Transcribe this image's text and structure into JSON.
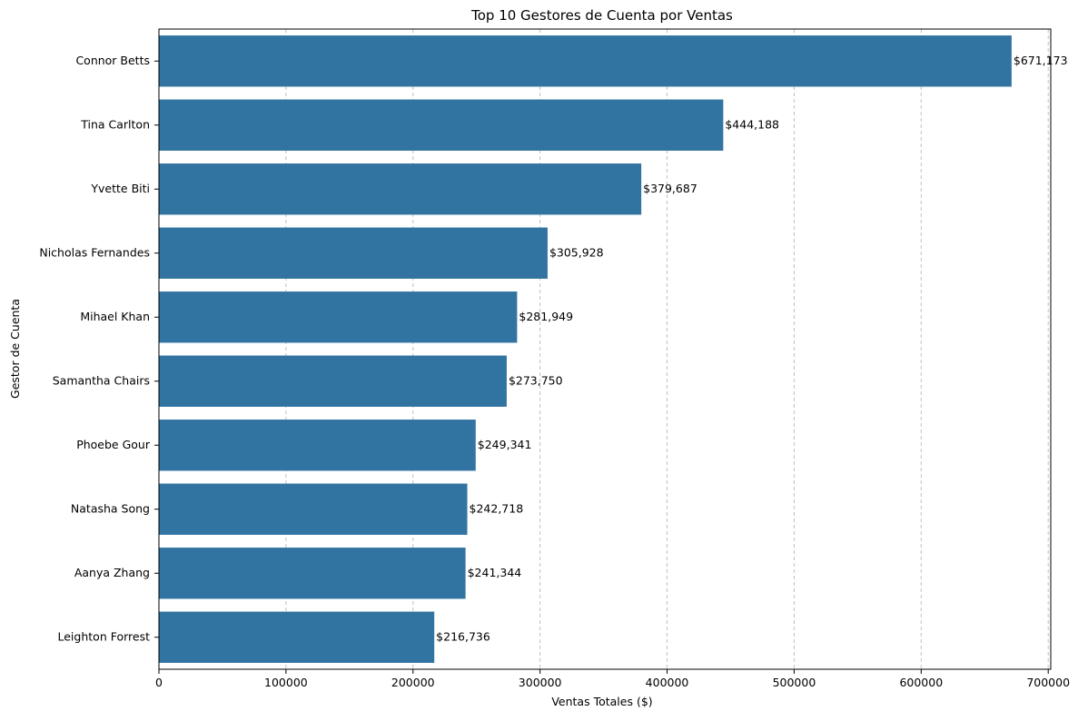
{
  "chart_data": {
    "type": "bar",
    "orientation": "horizontal",
    "title": "Top 10 Gestores de Cuenta por Ventas",
    "xlabel": "Ventas Totales ($)",
    "ylabel": "Gestor de Cuenta",
    "xlim": [
      0,
      702000
    ],
    "x_ticks": [
      0,
      100000,
      200000,
      300000,
      400000,
      500000,
      600000,
      700000
    ],
    "x_tick_labels": [
      "0",
      "100000",
      "200000",
      "300000",
      "400000",
      "500000",
      "600000",
      "700000"
    ],
    "grid": {
      "x": true,
      "y": false,
      "style": "dashed"
    },
    "categories": [
      "Connor Betts",
      "Tina Carlton",
      "Yvette Biti",
      "Nicholas Fernandes",
      "Mihael Khan",
      "Samantha Chairs",
      "Phoebe Gour",
      "Natasha Song",
      "Aanya Zhang",
      "Leighton Forrest"
    ],
    "values": [
      671173,
      444188,
      379687,
      305928,
      281949,
      273750,
      249341,
      242718,
      241344,
      216736
    ],
    "data_labels": [
      "$671,173",
      "$444,188",
      "$379,687",
      "$305,928",
      "$281,949",
      "$273,750",
      "$249,341",
      "$242,718",
      "$241,344",
      "$216,736"
    ],
    "bar_color": "#3274a1",
    "grid_color": "#c0c0c0",
    "axis_color": "#000000"
  }
}
